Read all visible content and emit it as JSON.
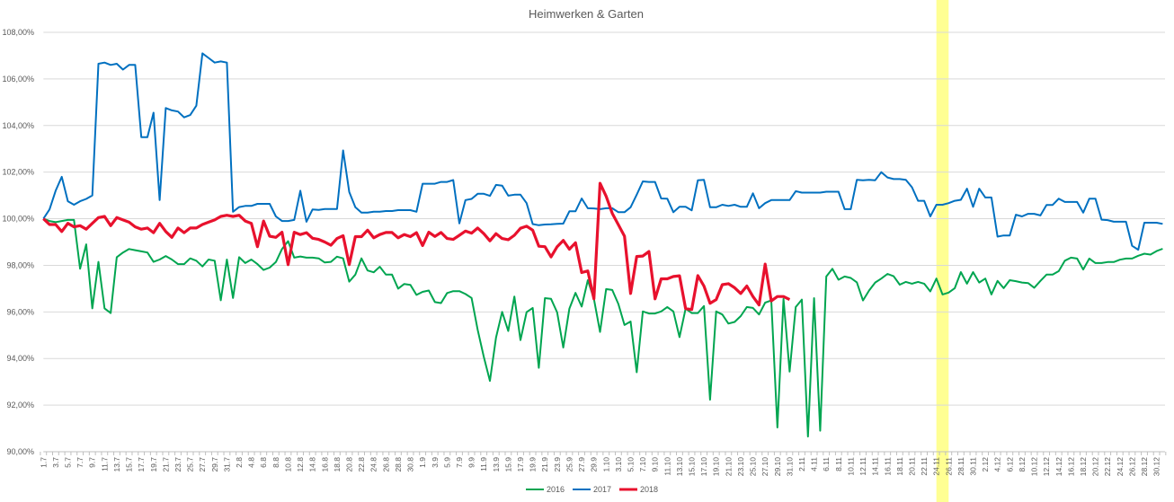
{
  "chart_data": {
    "type": "line",
    "title": "Heimwerken & Garten",
    "xlabel": "",
    "ylabel": "",
    "ylim": [
      90,
      108
    ],
    "y_ticks": [
      90,
      92,
      94,
      96,
      98,
      100,
      102,
      104,
      106,
      108
    ],
    "y_tick_labels": [
      "90,00%",
      "92,00%",
      "94,00%",
      "96,00%",
      "98,00%",
      "100,00%",
      "102,00%",
      "104,00%",
      "106,00%",
      "108,00%"
    ],
    "grid": true,
    "legend_position": "bottom",
    "x_count": 184,
    "x_tick_every": 2,
    "x_tick_labels": [
      "1.7",
      "3.7",
      "5.7",
      "7.7",
      "9.7",
      "11.7",
      "13.7",
      "15.7",
      "17.7",
      "19.7",
      "21.7",
      "23.7",
      "25.7",
      "27.7",
      "29.7",
      "31.7",
      "2.8",
      "4.8",
      "6.8",
      "8.8",
      "10.8",
      "12.8",
      "14.8",
      "16.8",
      "18.8",
      "20.8",
      "22.8",
      "24.8",
      "26.8",
      "28.8",
      "30.8",
      "1.9",
      "3.9",
      "5.9",
      "7.9",
      "9.9",
      "11.9",
      "13.9",
      "15.9",
      "17.9",
      "19.9",
      "21.9",
      "23.9",
      "25.9",
      "27.9",
      "29.9",
      "1.10",
      "3.10",
      "5.10",
      "7.10",
      "9.10",
      "11.10",
      "13.10",
      "15.10",
      "17.10",
      "19.10",
      "21.10",
      "23.10",
      "25.10",
      "27.10",
      "29.10",
      "31.10",
      "2.11",
      "4.11",
      "6.11",
      "8.11",
      "10.11",
      "12.11",
      "14.11",
      "16.11",
      "18.11",
      "20.11",
      "22.11",
      "24.11",
      "26.11",
      "28.11",
      "30.11",
      "2.12",
      "4.12",
      "6.12",
      "8.12",
      "10.12",
      "12.12",
      "14.12",
      "16.12",
      "18.12",
      "20.12",
      "22.12",
      "24.12",
      "26.12",
      "28.12",
      "30.12"
    ],
    "highlight": {
      "from_index": 146,
      "to_index": 148,
      "color": "#FFFF80"
    },
    "series": [
      {
        "name": "2016",
        "color": "#00A550",
        "values": [
          100,
          99.9,
          99.85,
          99.9,
          99.95,
          99.95,
          97.85,
          98.9,
          96.15,
          98.15,
          96.15,
          95.95,
          98.35,
          98.55,
          98.7,
          98.65,
          98.6,
          98.55,
          98.15,
          98.25,
          98.4,
          98.25,
          98.05,
          98.05,
          98.3,
          98.2,
          97.95,
          98.25,
          98.2,
          96.5,
          98.25,
          96.6,
          98.35,
          98.1,
          98.25,
          98.05,
          97.8,
          97.9,
          98.14,
          98.7,
          99.04,
          98.33,
          98.38,
          98.33,
          98.33,
          98.3,
          98.12,
          98.15,
          98.37,
          98.3,
          97.3,
          97.6,
          98.3,
          97.78,
          97.7,
          97.94,
          97.6,
          97.6,
          97.0,
          97.2,
          97.16,
          96.73,
          96.86,
          96.92,
          96.42,
          96.38,
          96.81,
          96.89,
          96.89,
          96.77,
          96.6,
          95.23,
          94.07,
          93.04,
          94.9,
          96.0,
          95.18,
          96.66,
          94.79,
          95.99,
          96.17,
          93.6,
          96.59,
          96.56,
          95.98,
          94.47,
          96.14,
          96.82,
          96.23,
          97.36,
          96.56,
          95.14,
          96.98,
          96.94,
          96.34,
          95.44,
          95.59,
          93.41,
          96.02,
          95.93,
          95.93,
          96.02,
          96.21,
          96.02,
          94.92,
          96.14,
          95.95,
          95.95,
          96.25,
          92.23,
          96.02,
          95.89,
          95.5,
          95.57,
          95.82,
          96.21,
          96.17,
          95.89,
          96.4,
          96.49,
          91.04,
          96.56,
          93.44,
          96.21,
          96.53,
          90.65,
          96.59,
          90.9,
          97.52,
          97.85,
          97.38,
          97.52,
          97.46,
          97.27,
          96.49,
          96.92,
          97.26,
          97.43,
          97.63,
          97.53,
          97.17,
          97.29,
          97.21,
          97.29,
          97.21,
          96.88,
          97.43,
          96.75,
          96.83,
          97.02,
          97.71,
          97.21,
          97.71,
          97.26,
          97.43,
          96.75,
          97.33,
          97.02,
          97.36,
          97.32,
          97.26,
          97.24,
          97.04,
          97.33,
          97.6,
          97.6,
          97.75,
          98.2,
          98.33,
          98.29,
          97.82,
          98.29,
          98.1,
          98.1,
          98.14,
          98.14,
          98.24,
          98.29,
          98.29,
          98.41,
          98.5,
          98.46,
          98.61,
          98.71
        ]
      },
      {
        "name": "2017",
        "color": "#0070C0",
        "values": [
          100,
          100.4,
          101.2,
          101.8,
          100.75,
          100.6,
          100.75,
          100.85,
          101.0,
          106.65,
          106.7,
          106.6,
          106.65,
          106.4,
          106.6,
          106.6,
          103.5,
          103.5,
          104.55,
          100.8,
          104.75,
          104.65,
          104.6,
          104.35,
          104.45,
          104.85,
          107.1,
          106.9,
          106.7,
          106.75,
          106.7,
          100.3,
          100.5,
          100.55,
          100.55,
          100.64,
          100.64,
          100.64,
          100.1,
          99.9,
          99.9,
          99.95,
          101.2,
          99.87,
          100.4,
          100.38,
          100.42,
          100.42,
          100.42,
          102.93,
          101.15,
          100.49,
          100.26,
          100.26,
          100.3,
          100.3,
          100.33,
          100.33,
          100.37,
          100.37,
          100.37,
          100.3,
          101.5,
          101.5,
          101.5,
          101.58,
          101.58,
          101.66,
          99.8,
          100.8,
          100.85,
          101.07,
          101.07,
          100.98,
          101.45,
          101.42,
          100.99,
          101.03,
          101.03,
          100.67,
          99.77,
          99.72,
          99.75,
          99.76,
          99.78,
          99.79,
          100.32,
          100.32,
          100.87,
          100.45,
          100.44,
          100.41,
          100.45,
          100.45,
          100.28,
          100.28,
          100.49,
          101.03,
          101.6,
          101.58,
          101.58,
          100.87,
          100.86,
          100.28,
          100.51,
          100.51,
          100.36,
          101.65,
          101.67,
          100.49,
          100.49,
          100.6,
          100.55,
          100.6,
          100.51,
          100.51,
          101.09,
          100.45,
          100.67,
          100.8,
          100.8,
          100.8,
          100.8,
          101.18,
          101.12,
          101.12,
          101.12,
          101.12,
          101.16,
          101.16,
          101.16,
          100.41,
          100.41,
          101.67,
          101.65,
          101.67,
          101.65,
          102.0,
          101.77,
          101.7,
          101.7,
          101.67,
          101.35,
          100.77,
          100.77,
          100.1,
          100.6,
          100.6,
          100.67,
          100.77,
          100.81,
          101.29,
          100.51,
          101.29,
          100.91,
          100.91,
          99.23,
          99.28,
          99.28,
          100.17,
          100.1,
          100.21,
          100.21,
          100.14,
          100.59,
          100.59,
          100.86,
          100.72,
          100.72,
          100.72,
          100.26,
          100.86,
          100.86,
          99.96,
          99.94,
          99.87,
          99.87,
          99.87,
          98.84,
          98.67,
          99.83,
          99.83,
          99.83,
          99.78
        ]
      },
      {
        "name": "2018",
        "color": "#E8112D",
        "values": [
          100,
          99.75,
          99.75,
          99.45,
          99.8,
          99.65,
          99.7,
          99.55,
          99.8,
          100.05,
          100.1,
          99.7,
          100.05,
          99.95,
          99.85,
          99.65,
          99.55,
          99.6,
          99.4,
          99.8,
          99.45,
          99.2,
          99.6,
          99.4,
          99.6,
          99.6,
          99.75,
          99.85,
          99.95,
          100.1,
          100.15,
          100.1,
          100.15,
          99.9,
          99.8,
          98.8,
          99.9,
          99.25,
          99.2,
          99.42,
          98.03,
          99.42,
          99.32,
          99.4,
          99.16,
          99.11,
          99.0,
          98.86,
          99.15,
          99.27,
          98.03,
          99.23,
          99.23,
          99.51,
          99.18,
          99.32,
          99.41,
          99.41,
          99.18,
          99.32,
          99.23,
          99.4,
          98.85,
          99.42,
          99.24,
          99.41,
          99.15,
          99.11,
          99.29,
          99.47,
          99.38,
          99.6,
          99.36,
          99.05,
          99.36,
          99.15,
          99.1,
          99.29,
          99.59,
          99.68,
          99.51,
          98.82,
          98.8,
          98.36,
          98.8,
          99.07,
          98.69,
          98.97,
          97.69,
          97.76,
          96.56,
          101.52,
          100.96,
          100.23,
          99.74,
          99.25,
          96.79,
          98.38,
          98.4,
          98.59,
          96.56,
          97.42,
          97.42,
          97.52,
          97.55,
          96.14,
          96.1,
          97.56,
          97.11,
          96.37,
          96.53,
          97.17,
          97.21,
          97.04,
          96.79,
          97.11,
          96.66,
          96.3,
          98.05,
          96.47,
          96.66,
          96.66,
          96.53
        ]
      }
    ]
  }
}
